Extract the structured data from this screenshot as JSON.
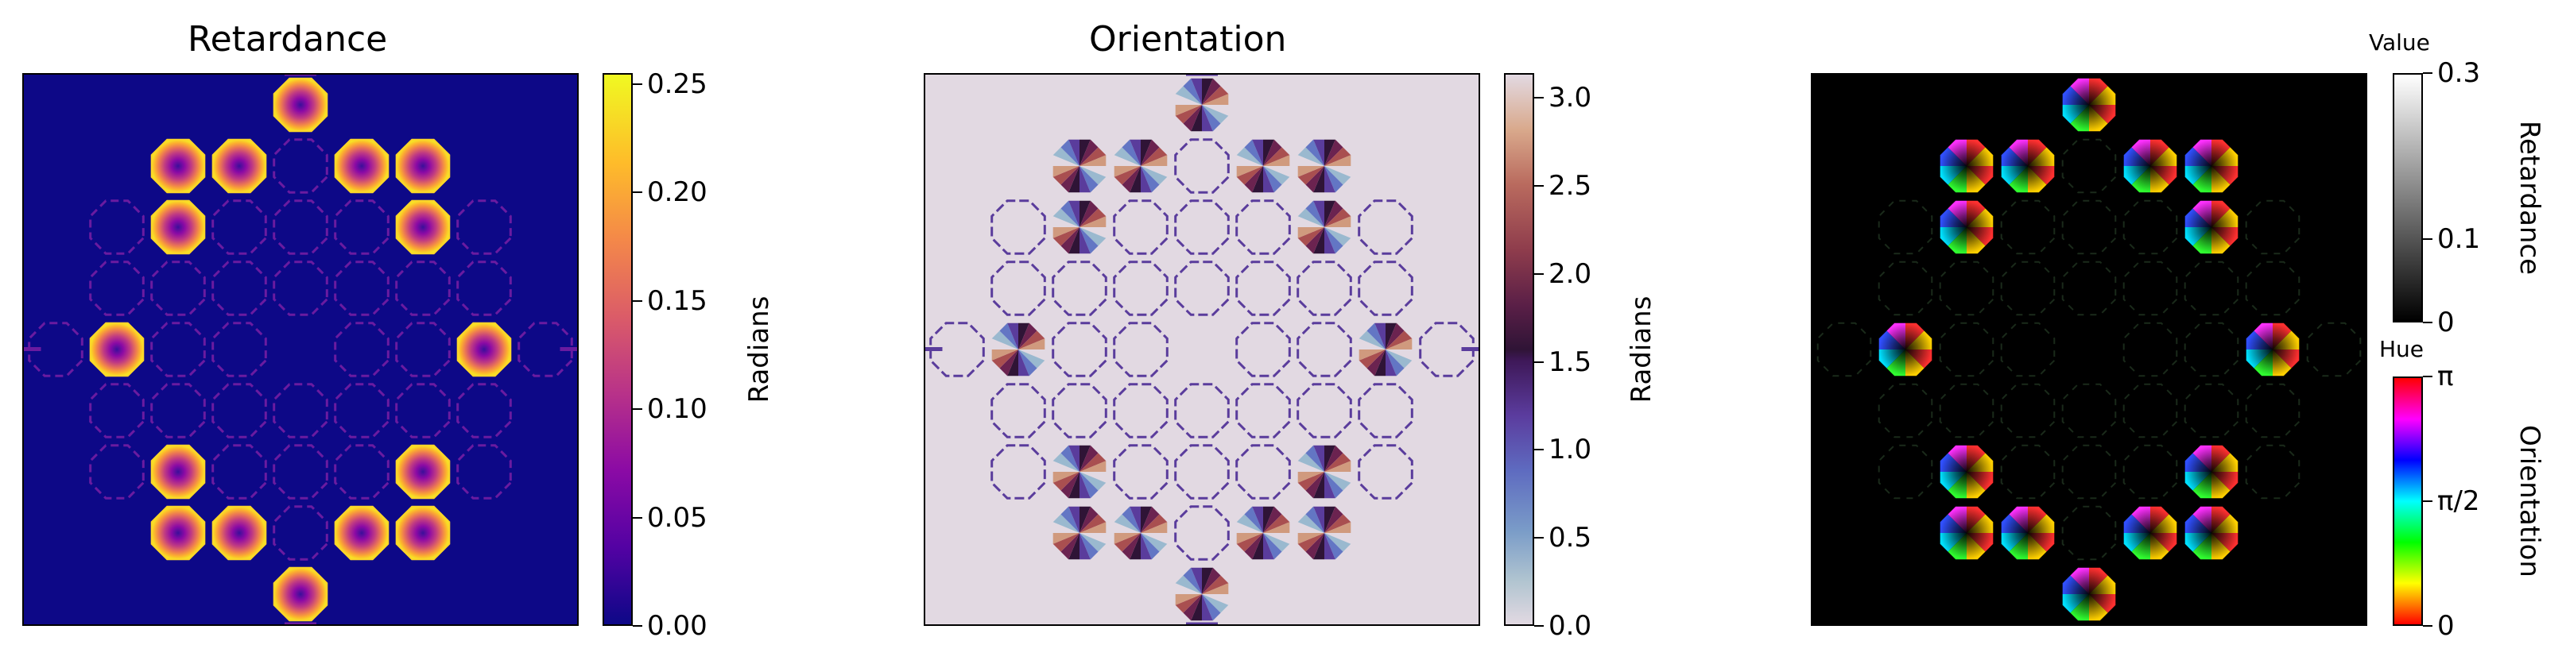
{
  "chart_data": [
    {
      "type": "heatmap",
      "title": "Retardance",
      "colormap": "plasma",
      "colorbar": {
        "label": "Radians",
        "range": [
          0,
          0.255
        ],
        "ticks": [
          "0.00",
          "0.05",
          "0.10",
          "0.15",
          "0.20",
          "0.25"
        ],
        "tick_values": [
          0,
          0.05,
          0.1,
          0.15,
          0.2,
          0.25
        ]
      }
    },
    {
      "type": "heatmap",
      "title": "Orientation",
      "colormap": "twilight",
      "colorbar": {
        "label": "Radians",
        "range": [
          0,
          3.1416
        ],
        "ticks": [
          "0.0",
          "0.5",
          "1.0",
          "1.5",
          "2.0",
          "2.5",
          "3.0"
        ],
        "tick_values": [
          0,
          0.5,
          1.0,
          1.5,
          2.0,
          2.5,
          3.0
        ]
      }
    },
    {
      "type": "heatmap",
      "title": "",
      "colormap": "HSV (hue = orientation, value = retardance)",
      "value_colorbar": {
        "title": "Value",
        "label": "Retardance",
        "range": [
          0,
          0.3
        ],
        "ticks": [
          "0",
          "0.1",
          "0.3"
        ],
        "tick_values": [
          0,
          0.1,
          0.3
        ]
      },
      "hue_colorbar": {
        "title": "Hue",
        "label": "Orientation",
        "range": [
          0,
          3.1416
        ],
        "ticks": [
          "0",
          "π/2",
          "π"
        ],
        "tick_values": [
          0,
          1.5708,
          3.1416
        ]
      }
    }
  ],
  "colors": {
    "retardance_background": "#0d0887",
    "orientation_background": "#e2d9e2",
    "overlay_background": "#000000"
  }
}
